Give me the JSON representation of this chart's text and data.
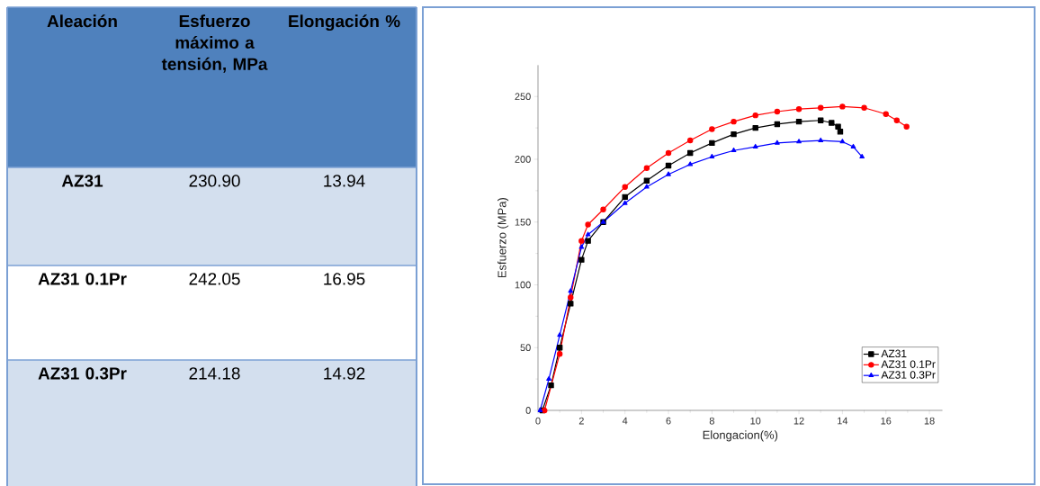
{
  "chart_data": [
    {
      "type": "other",
      "annotations": [
        "Aleación",
        "Esfuerzo máximo a tensión, MPa",
        "Elongación %",
        "AZ31",
        "230.90",
        "13.94",
        "AZ31 0.1Pr",
        "242.05",
        "16.95",
        "AZ31 0.3Pr",
        "214.18",
        "14.92"
      ]
    },
    {
      "type": "line",
      "xlabel": "Elongacion(%)",
      "ylabel": "Esfuerzo (MPa)",
      "xlim": [
        0,
        18.6
      ],
      "ylim": [
        0,
        275
      ],
      "xticks": [
        0,
        2,
        4,
        6,
        8,
        10,
        12,
        14,
        16,
        18
      ],
      "yticks": [
        0,
        50,
        100,
        150,
        200,
        250
      ],
      "grid": false,
      "legend": "bottom right",
      "series": [
        {
          "name": "AZ31",
          "color": "#000000",
          "marker": "square",
          "x": [
            0.2,
            0.6,
            1,
            1.5,
            2,
            2.3,
            3,
            4,
            5,
            6,
            7,
            8,
            9,
            10,
            11,
            12,
            13,
            13.5,
            13.8,
            13.9
          ],
          "values": [
            0,
            20,
            50,
            85,
            120,
            135,
            150,
            170,
            183,
            195,
            205,
            213,
            220,
            225,
            228,
            230,
            231,
            229,
            226,
            222
          ]
        },
        {
          "name": "AZ31 0.1Pr",
          "color": "#ff0000",
          "marker": "circle",
          "x": [
            0.3,
            1,
            1.5,
            2,
            2.3,
            3,
            4,
            5,
            6,
            7,
            8,
            9,
            10,
            11,
            12,
            13,
            14,
            15,
            16,
            16.5,
            16.95
          ],
          "values": [
            0,
            45,
            90,
            135,
            148,
            160,
            178,
            193,
            205,
            215,
            224,
            230,
            235,
            238,
            240,
            241,
            242,
            241,
            236,
            231,
            226
          ]
        },
        {
          "name": "AZ31 0.3Pr",
          "color": "#0000ff",
          "marker": "triangle",
          "x": [
            0.1,
            0.5,
            1,
            1.5,
            2,
            2.3,
            3,
            4,
            5,
            6,
            7,
            8,
            9,
            10,
            11,
            12,
            13,
            14,
            14.5,
            14.9
          ],
          "values": [
            0,
            25,
            60,
            95,
            130,
            140,
            150,
            165,
            178,
            188,
            196,
            202,
            207,
            210,
            213,
            214,
            215,
            214,
            210,
            202
          ]
        }
      ]
    }
  ]
}
